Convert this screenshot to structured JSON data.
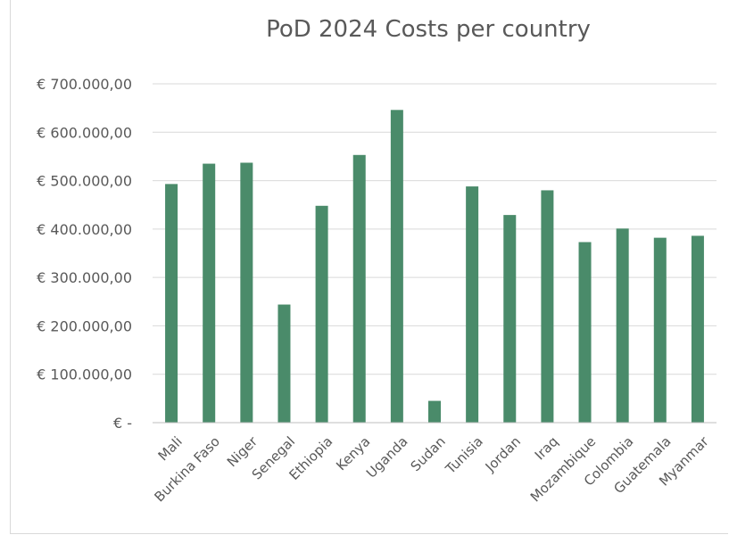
{
  "chart_data": {
    "type": "bar",
    "title": "PoD 2024 Costs per country",
    "xlabel": "",
    "ylabel": "",
    "categories": [
      "Mali",
      "Burkina Faso",
      "Niger",
      "Senegal",
      "Ethiopia",
      "Kenya",
      "Uganda",
      "Sudan",
      "Tunisia",
      "Jordan",
      "Iraq",
      "Mozambique",
      "Colombia",
      "Guatemala",
      "Myanmar"
    ],
    "values": [
      493000,
      535000,
      537000,
      244000,
      448000,
      553000,
      646000,
      45000,
      488000,
      429000,
      480000,
      373000,
      401000,
      382000,
      386000
    ],
    "ylim": [
      0,
      700000
    ],
    "y_ticks": [
      {
        "value": 0,
        "label": "€ -"
      },
      {
        "value": 100000,
        "label": "€ 100.000,00"
      },
      {
        "value": 200000,
        "label": "€ 200.000,00"
      },
      {
        "value": 300000,
        "label": "€ 300.000,00"
      },
      {
        "value": 400000,
        "label": "€ 400.000,00"
      },
      {
        "value": 500000,
        "label": "€ 500.000,00"
      },
      {
        "value": 600000,
        "label": "€ 600.000,00"
      },
      {
        "value": 700000,
        "label": "€ 700.000,00"
      }
    ],
    "grid": true,
    "legend": "none",
    "colors": {
      "bar": "#4a8b6a",
      "grid": "#d9d9d9",
      "text": "#595959",
      "axis": "#bfbfbf"
    }
  }
}
